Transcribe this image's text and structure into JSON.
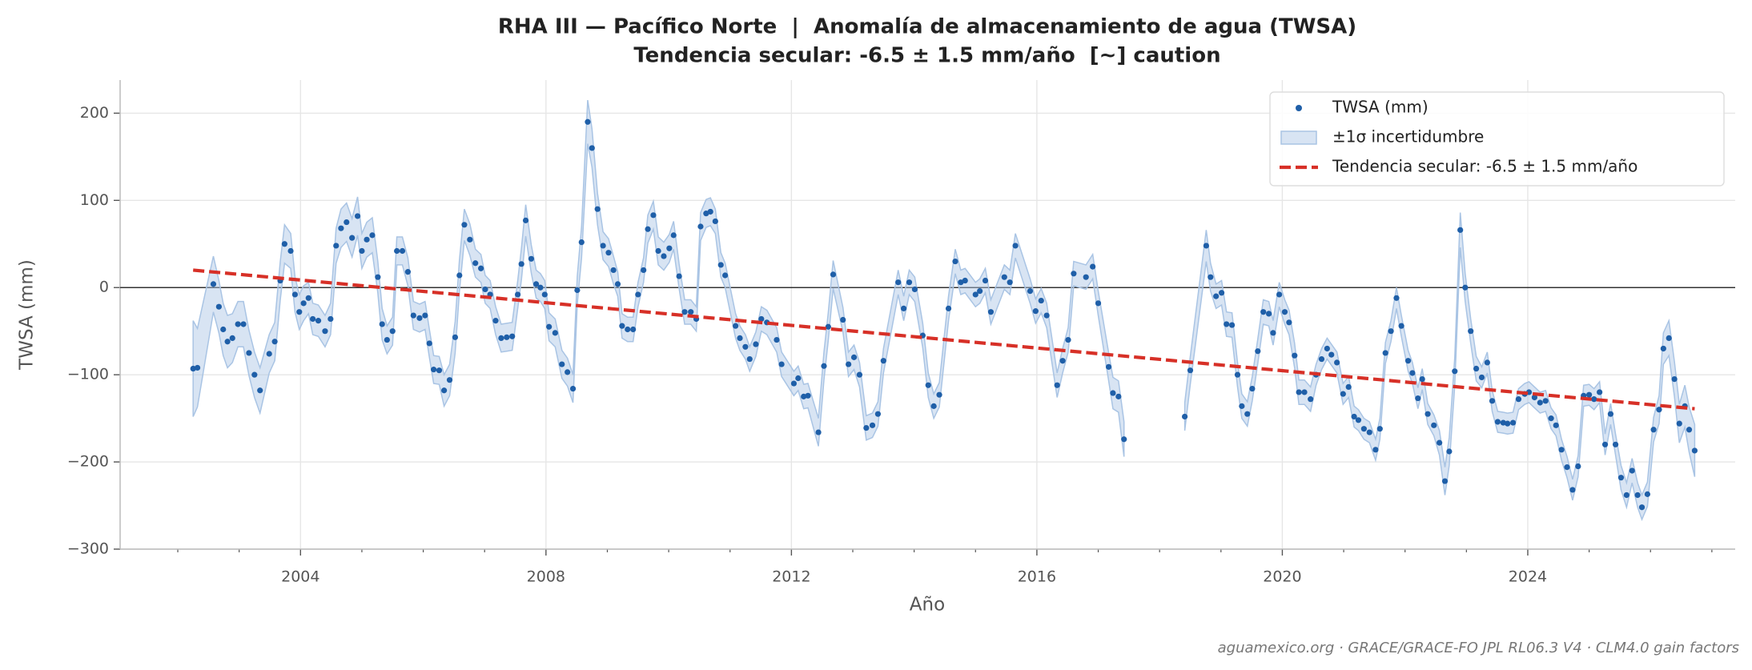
{
  "chart_data": {
    "type": "scatter",
    "title": "RHA III — Pacífico Norte  |  Anomalía de almacenamiento de agua (TWSA)",
    "subtitle": "Tendencia secular: -6.5 ± 1.5 mm/año  [~] caution",
    "xlabel": "Año",
    "ylabel": "TWSA (mm)",
    "note": "aguamexico.org · GRACE/GRACE-FO JPL RL06.3 V4 · CLM4.0 gain factors",
    "xlim": [
      2001.06,
      2027.38
    ],
    "ylim": [
      -300,
      238
    ],
    "xticks": [
      2004,
      2008,
      2012,
      2016,
      2020,
      2024
    ],
    "xminorticks": [
      2002,
      2003,
      2005,
      2006,
      2007,
      2009,
      2010,
      2011,
      2013,
      2014,
      2015,
      2017,
      2018,
      2019,
      2021,
      2022,
      2023,
      2025,
      2026,
      2027
    ],
    "yticks": [
      {
        "value": -300,
        "label": "−300"
      },
      {
        "value": -200,
        "label": "−200"
      },
      {
        "value": -100,
        "label": "−100"
      },
      0,
      100,
      200
    ],
    "hline": 0,
    "grid": true,
    "legend": "upper right",
    "x": [
      2002.25,
      2002.32,
      2002.58,
      2002.67,
      2002.74,
      2002.81,
      2002.89,
      2002.98,
      2003.07,
      2003.16,
      2003.25,
      2003.34,
      2003.49,
      2003.58,
      2003.67,
      2003.74,
      2003.84,
      2003.91,
      2003.98,
      2004.05,
      2004.13,
      2004.2,
      2004.29,
      2004.4,
      2004.49,
      2004.58,
      2004.66,
      2004.75,
      2004.84,
      2004.93,
      2005.0,
      2005.08,
      2005.17,
      2005.26,
      2005.33,
      2005.41,
      2005.5,
      2005.57,
      2005.66,
      2005.75,
      2005.84,
      2005.94,
      2006.03,
      2006.1,
      2006.17,
      2006.26,
      2006.34,
      2006.43,
      2006.52,
      2006.59,
      2006.67,
      2006.76,
      2006.85,
      2006.94,
      2007.01,
      2007.09,
      2007.18,
      2007.27,
      2007.36,
      2007.45,
      2007.54,
      2007.6,
      2007.67,
      2007.76,
      2007.84,
      2007.91,
      2007.98,
      2008.05,
      2008.15,
      2008.26,
      2008.35,
      2008.44,
      2008.51,
      2008.58,
      2008.68,
      2008.75,
      2008.84,
      2008.93,
      2009.02,
      2009.1,
      2009.17,
      2009.24,
      2009.33,
      2009.42,
      2009.5,
      2009.59,
      2009.66,
      2009.75,
      2009.83,
      2009.92,
      2010.01,
      2010.08,
      2010.17,
      2010.26,
      2010.36,
      2010.45,
      2010.52,
      2010.61,
      2010.68,
      2010.76,
      2010.85,
      2010.92,
      2011.09,
      2011.16,
      2011.25,
      2011.32,
      2011.42,
      2011.51,
      2011.6,
      2011.76,
      2011.84,
      2012.04,
      2012.11,
      2012.2,
      2012.27,
      2012.44,
      2012.53,
      2012.6,
      2012.68,
      2012.84,
      2012.93,
      2013.02,
      2013.11,
      2013.22,
      2013.32,
      2013.41,
      2013.5,
      2013.74,
      2013.83,
      2013.92,
      2014.01,
      2014.14,
      2014.23,
      2014.32,
      2014.41,
      2014.56,
      2014.67,
      2014.76,
      2014.83,
      2015.0,
      2015.07,
      2015.16,
      2015.25,
      2015.47,
      2015.56,
      2015.65,
      2015.89,
      2015.98,
      2016.07,
      2016.16,
      2016.33,
      2016.42,
      2016.51,
      2016.6,
      2016.8,
      2016.91,
      2017.0,
      2017.17,
      2017.24,
      2017.33,
      2017.42,
      2018.41,
      2018.5,
      2018.76,
      2018.83,
      2018.92,
      2019.01,
      2019.09,
      2019.18,
      2019.27,
      2019.34,
      2019.43,
      2019.51,
      2019.6,
      2019.69,
      2019.78,
      2019.85,
      2019.95,
      2020.04,
      2020.11,
      2020.2,
      2020.27,
      2020.36,
      2020.46,
      2020.55,
      2020.64,
      2020.73,
      2020.8,
      2020.89,
      2020.99,
      2021.08,
      2021.17,
      2021.24,
      2021.33,
      2021.42,
      2021.52,
      2021.59,
      2021.68,
      2021.77,
      2021.86,
      2021.94,
      2022.05,
      2022.12,
      2022.21,
      2022.28,
      2022.37,
      2022.47,
      2022.56,
      2022.65,
      2022.72,
      2022.81,
      2022.9,
      2022.98,
      2023.07,
      2023.16,
      2023.25,
      2023.34,
      2023.42,
      2023.51,
      2023.6,
      2023.67,
      2023.76,
      2023.85,
      2023.95,
      2024.02,
      2024.11,
      2024.2,
      2024.29,
      2024.38,
      2024.46,
      2024.55,
      2024.64,
      2024.73,
      2024.82,
      2024.91,
      2025.0,
      2025.08,
      2025.17,
      2025.26,
      2025.35,
      2025.43,
      2025.52,
      2025.61,
      2025.7,
      2025.79,
      2025.86,
      2025.95,
      2026.05,
      2026.14,
      2026.21,
      2026.3,
      2026.39,
      2026.47,
      2026.56,
      2026.63,
      2026.72
    ],
    "series": [
      {
        "name": "TWSA (mm)",
        "type": "points",
        "color": "#1f5fa8",
        "values": [
          -93,
          -92,
          4,
          -22,
          -48,
          -62,
          -58,
          -42,
          -42,
          -75,
          -100,
          -118,
          -76,
          -62,
          8,
          50,
          42,
          -8,
          -28,
          -18,
          -12,
          -36,
          -38,
          -50,
          -36,
          48,
          68,
          75,
          57,
          82,
          42,
          55,
          60,
          12,
          -42,
          -60,
          -50,
          42,
          42,
          18,
          -32,
          -35,
          -32,
          -64,
          -94,
          -95,
          -118,
          -106,
          -57,
          14,
          72,
          55,
          28,
          22,
          -2,
          -8,
          -38,
          -58,
          -57,
          -56,
          -8,
          27,
          77,
          33,
          4,
          0,
          -8,
          -45,
          -52,
          -88,
          -97,
          -116,
          -3,
          52,
          190,
          160,
          90,
          48,
          40,
          20,
          4,
          -44,
          -48,
          -48,
          -8,
          20,
          67,
          83,
          42,
          36,
          45,
          60,
          13,
          -28,
          -28,
          -36,
          70,
          85,
          87,
          76,
          26,
          14,
          -44,
          -58,
          -68,
          -82,
          -65,
          -36,
          -40,
          -60,
          -88,
          -110,
          -104,
          -125,
          -124,
          -166,
          -90,
          -45,
          15,
          -37,
          -88,
          -80,
          -100,
          -161,
          -158,
          -145,
          -84,
          6,
          -24,
          6,
          -2,
          -55,
          -112,
          -136,
          -123,
          -24,
          30,
          6,
          8,
          -8,
          -4,
          8,
          -28,
          12,
          6,
          48,
          -4,
          -27,
          -15,
          -32,
          -112,
          -84,
          -60,
          16,
          12,
          24,
          -18,
          -91,
          -121,
          -125,
          -174,
          -148,
          -95,
          48,
          12,
          -10,
          -6,
          -42,
          -43,
          -100,
          -136,
          -145,
          -116,
          -73,
          -28,
          -30,
          -52,
          -8,
          -28,
          -40,
          -78,
          -120,
          -120,
          -128,
          -100,
          -82,
          -70,
          -77,
          -86,
          -122,
          -114,
          -148,
          -152,
          -162,
          -166,
          -186,
          -162,
          -75,
          -50,
          -12,
          -44,
          -84,
          -98,
          -127,
          -105,
          -145,
          -158,
          -178,
          -222,
          -188,
          -96,
          66,
          0,
          -50,
          -93,
          -103,
          -86,
          -130,
          -154,
          -155,
          -156,
          -155,
          -128,
          -122,
          -120,
          -126,
          -132,
          -130,
          -150,
          -158,
          -186,
          -206,
          -232,
          -205,
          -124,
          -123,
          -128,
          -120,
          -180,
          -145,
          -180,
          -218,
          -238,
          -210,
          -238,
          -252,
          -237,
          -163,
          -140,
          -70,
          -58,
          -105,
          -156,
          -136,
          -163,
          -187
        ]
      },
      {
        "name": "±1σ incertidumbre",
        "type": "band",
        "color": "#a9c4e4",
        "values": [
          55,
          45,
          32,
          30,
          30,
          30,
          28,
          26,
          26,
          26,
          26,
          26,
          22,
          22,
          22,
          22,
          20,
          20,
          20,
          20,
          18,
          18,
          18,
          18,
          18,
          20,
          22,
          22,
          22,
          22,
          20,
          20,
          20,
          18,
          18,
          16,
          16,
          16,
          16,
          16,
          16,
          16,
          16,
          16,
          16,
          16,
          18,
          18,
          18,
          18,
          18,
          18,
          16,
          16,
          16,
          16,
          16,
          16,
          16,
          16,
          16,
          18,
          18,
          16,
          16,
          16,
          16,
          16,
          16,
          16,
          16,
          16,
          16,
          18,
          25,
          22,
          18,
          16,
          16,
          16,
          14,
          14,
          14,
          14,
          14,
          14,
          16,
          16,
          16,
          16,
          16,
          16,
          14,
          14,
          14,
          14,
          16,
          16,
          16,
          14,
          14,
          14,
          14,
          14,
          14,
          14,
          14,
          14,
          14,
          14,
          14,
          14,
          14,
          14,
          14,
          16,
          16,
          16,
          16,
          14,
          14,
          14,
          14,
          14,
          14,
          14,
          14,
          14,
          14,
          14,
          14,
          14,
          14,
          14,
          14,
          14,
          14,
          14,
          14,
          14,
          14,
          14,
          14,
          14,
          14,
          14,
          14,
          14,
          14,
          14,
          14,
          14,
          14,
          14,
          14,
          14,
          14,
          16,
          18,
          18,
          20,
          16,
          16,
          18,
          16,
          14,
          14,
          14,
          14,
          14,
          14,
          14,
          14,
          14,
          14,
          14,
          14,
          14,
          14,
          14,
          14,
          14,
          14,
          14,
          12,
          12,
          12,
          12,
          12,
          12,
          12,
          12,
          12,
          12,
          12,
          12,
          12,
          12,
          12,
          12,
          12,
          12,
          12,
          12,
          12,
          12,
          12,
          14,
          16,
          16,
          16,
          20,
          16,
          14,
          14,
          12,
          12,
          12,
          12,
          12,
          12,
          12,
          12,
          12,
          12,
          12,
          12,
          12,
          12,
          12,
          12,
          12,
          12,
          12,
          12,
          12,
          12,
          12,
          12,
          12,
          12,
          14,
          14,
          14,
          14,
          14,
          14,
          14,
          16,
          18,
          20,
          20,
          22,
          24,
          26,
          30
        ]
      },
      {
        "name": "Tendencia secular: -6.5 ± 1.5 mm/año",
        "type": "line",
        "color": "#d73027",
        "x": [
          2002.25,
          2026.72
        ],
        "values": [
          20,
          -139
        ]
      }
    ]
  }
}
